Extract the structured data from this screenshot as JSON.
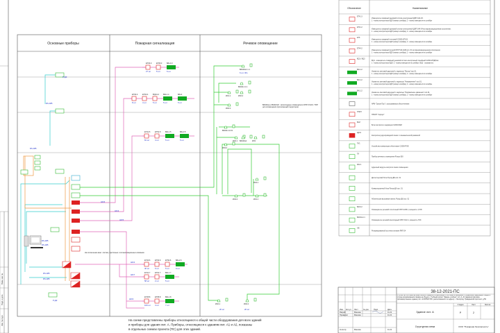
{
  "columns": {
    "main": "Основные приборы",
    "fire": "Пожарная сигнализация",
    "voice": "Речевое оповещение"
  },
  "diagram": {
    "fire_rows": [
      {
        "labels": [
          "ЕТ04.3",
          "ЕТ06.3",
          "ВАL3.3"
        ],
        "counts": [
          "27 шт",
          "5 шт",
          "5 шт"
        ]
      },
      {
        "labels": [
          "ЕТ04.4",
          "ЕТ04.4",
          "ВQ24.4",
          "ВАL1.4",
          "ВАL4"
        ],
        "counts": [
          "8 шт",
          "4 шт",
          "5 шт",
          "5 шт",
          "5 шт"
        ]
      },
      {
        "labels": [
          "ЕТ41.5",
          "ЕТ51.5",
          "ВАL1.5",
          "ВАL3.5"
        ],
        "counts": [
          "81 шт",
          "4 шт",
          "5 шт",
          "5 шт"
        ]
      },
      {
        "labels": [
          "ЕТ43.6",
          "ЕТ62.6",
          "ЕТ92.6",
          "ВАL2.6"
        ],
        "counts": [
          "40 шт",
          "6 шт",
          "5 шт",
          "9 шт"
        ]
      },
      {
        "labels": [
          "ЕТ41.7",
          "ЕТ61.7",
          "ВАL1.7"
        ],
        "counts": [
          "58 шт",
          "2 шт",
          "5 шт"
        ]
      },
      {
        "labels": [
          "ЕТ45.8",
          "ЕТ65.8",
          "ВАL1.8"
        ],
        "counts": [
          "100 шт",
          "4 шт",
          "7 шт"
        ]
      }
    ],
    "loops": [
      "ШС6",
      "ШС4",
      "ШС5",
      "ШС2",
      "ШС7",
      "ШС3"
    ],
    "main_labels": [
      "ВЫ",
      "ВЫ",
      "ВЫ",
      "RS-485",
      "RS-485",
      "RS-485",
      "RS-485",
      "RS-485",
      "RS-485",
      "ВЫ"
    ],
    "device_labels": [
      "Р-ДК",
      "Р-ДК",
      "Р-ДК",
      "Р-ДК",
      "Р-ДК",
      "Р-ДК",
      "Р-ДК"
    ],
    "voice_labels": [
      "ВА02№1.1.1",
      "ZD1.1",
      "ВА02L1.1.1",
      "ZD2.2",
      "ZD2.3",
      "ВА02L1.2.19",
      "ZD2.1",
      "ВА02№1",
      "ZD3",
      "ZD3.2",
      "ZD4.1",
      "ZD4.2",
      "ZD1.1",
      "ZD2.1",
      "ZD2.2"
    ],
    "voice_note": "ВА02№а и ВА02№б - всепогодные оповещатели ОПР-У110.1 \"Ю6\" для оповещения прилегающей территории",
    "cabinet_note": "На отключение вент. систем, приточных и сигнализационных клапанов",
    "counts_voice": [
      "6 шт. 06ч",
      "20 шт",
      "20 шт"
    ]
  },
  "notes": [
    "На схеме представлены приборы относящиеся к общей части оборудования для всех зданий",
    "и приборы для здания лит. А. Приборы, относящиеся к зданиям лит. А1 и А2, показаны",
    "в отдельных схемах проекта (ПС) для этих зданий."
  ],
  "legend": {
    "header": {
      "symbol": "Обозначение",
      "name": "Наименование"
    },
    "rows": [
      {
        "tag": "ЕТ41.3",
        "icon": "smoke-detector",
        "text": "Извещатель пожарный дымовой оптико-электронный ДИП-34А-03.",
        "sub": "1 - номер контроллера КДЛ (номер шлейфа), 2 - номер извещателя в шлейфе"
      },
      {
        "tag": "ЕТ41.2",
        "icon": "smoke-detector-ex",
        "text": "Извещатель пожарный дымовой оптико-электронный ДИП-34А-04 во взрывозащищенном исполнении.",
        "sub": "1 - номер контроллера КДЛ (номер шлейфа), 2 - номер извещателя в шлейфе"
      },
      {
        "tag": "ЕТ6",
        "icon": "heat-detector",
        "text": "Извещатель пожарный тепловой С2000-ИП-03.",
        "sub": "1 - номер контроллера КДЛ (номер шлейфа), 2 - номер извещателя в шлейфе"
      },
      {
        "tag": "ЕТ44.2",
        "icon": "manual-call-point",
        "text": "Извещатель пожарный ручной ИПР 513-3АМ исп. 01 во взрывозащищенном исполнении.",
        "sub": "1 - номер контроллера КДЛ (номер шлейфа), 2 - номер извещателя в шлейфе"
      },
      {
        "tag": "ВQ1 / ВQ2",
        "icon": "linear-detector",
        "text": "ВQ1 - извещатель пожарный дымовой оптико-электронный линейный С2000-ИПДЛ-Ex.",
        "sub": "1 - номер контроллера КДЛ, 2 - номер извещателя в шлейфе. ВQ2 - отражатель"
      },
      {
        "tag": "ВАL1.2",
        "icon": "exit-sign",
        "text": "Указатель световой адресный с надписью \"Выход\" исп.01.",
        "sub": "1 - номер контроллера КДЛ (номер шлейфа), 2 - номер извещателя в шлейфе"
      },
      {
        "tag": "ВАL1.2",
        "icon": "direction-sign",
        "text": "Указатель световой адресный с надписью \"Направление\" исп.01.",
        "sub": "1 - номер контроллера КДЛ (номер шлейфа), 2 - номер извещателя в шлейфе"
      },
      {
        "tag": "ВАL1.2",
        "icon": "arrow-sign",
        "text": "Указатель световой адресный с надписью \"Направление движения\" исп.01.",
        "sub": "1 - номер контроллера КДЛ (номер шлейфа), 2 - номер извещателя в шлейфе"
      },
      {
        "tag": "",
        "icon": "workstation",
        "text": "АРМ \"Орион Про\" с программным обеспечением",
        "sub": ""
      },
      {
        "tag": "ППКП",
        "icon": "control-panel",
        "text": "ППКУП \"Сириус\"",
        "sub": ""
      },
      {
        "tag": "БКИ",
        "icon": "indicator-block",
        "text": "Блок контроля и индикации С2000-БКИ",
        "sub": ""
      },
      {
        "tag": "КДЛ1",
        "icon": "loop-controller",
        "text": "Контроллер двухпроводной линии с гальванической развязкой",
        "sub": ""
      },
      {
        "tag": "ПУ1",
        "icon": "switch-device",
        "text": "Устройство коммутации объектовое С2000-PGE",
        "sub": ""
      },
      {
        "tag": "ЛУ",
        "icon": "voice-unit",
        "text": "Прибор речевого оповещения Рупор-300",
        "sub": ""
      },
      {
        "tag": "ZD2.1",
        "icon": "line-module",
        "text": "Адресный модуль контроля линии оповещения",
        "sub": ""
      },
      {
        "tag": "",
        "icon": "dispatch-block",
        "text": "Диспетчерский блок Рупор-ДБ исп. 01",
        "sub": ""
      },
      {
        "tag": "",
        "icon": "switch-block",
        "text": "Коммутационный блок Рупор-ДК исп. 01",
        "sub": ""
      },
      {
        "tag": "",
        "icon": "call-panel",
        "text": "Абонентская вызывная панель Рупор-ДК исп. 01",
        "sub": ""
      },
      {
        "tag": "ВА01.2",
        "icon": "ceiling-speaker",
        "text": "Оповещатель речевой потолочный ОПР-С206.1, мощность 1,5 Вт",
        "sub": ""
      },
      {
        "tag": "ВА02№1.1",
        "icon": "outdoor-speaker",
        "text": "Оповещатель речевой всепогодный ОПР-У110.1, мощность 5 Вт",
        "sub": ""
      },
      {
        "tag": "GБ",
        "icon": "power-supply",
        "text": "Резервированный источник питания РИП-24",
        "sub": ""
      }
    ]
  },
  "title_block": {
    "code": "38-12-2021-ПС",
    "description": "Устройство системы автоматической пожарной сигнализации и системы оповещения и управления эвакуацией людей в случае возникновения пожара на объекте: Учебный корпус \"Здание учебное\" лит. А, А1 (административно-производственное здание) лит. А2 ФГБОУ ВО, расположенного по адресу: г. Белгород, Гражданский проспект, д.59",
    "building": "Здание лит. А",
    "headers": [
      "Изм.",
      "Кол.уч",
      "Лист",
      "№ док.",
      "Подп.",
      "Дата"
    ],
    "rows": [
      {
        "role": "Разраб.",
        "name": "Машкин",
        "date": "11.21"
      },
      {
        "role": "Проверил",
        "name": "Машкин",
        "date": "11.21"
      },
      {
        "role": "Н.контр.",
        "name": "Машкин",
        "date": "11.21"
      }
    ],
    "stage_headers": [
      "Стадия",
      "Лист",
      "Листов"
    ],
    "stage": "Р",
    "sheet": "2",
    "sheets": "",
    "sheet_title": "Структурная схема",
    "company": "ООО \"Пожарная безопасность\""
  },
  "side_stamp": [
    "Инв. № подл.",
    "Подп. и дата",
    "Взам. инв. №"
  ],
  "colors": {
    "fire": "#dd2222",
    "loop": "#e066b8",
    "voice": "#33cc33",
    "rs485": "#33cccc",
    "power": "#ee9944",
    "label": "#2233cc",
    "sign": "#11aa22"
  }
}
